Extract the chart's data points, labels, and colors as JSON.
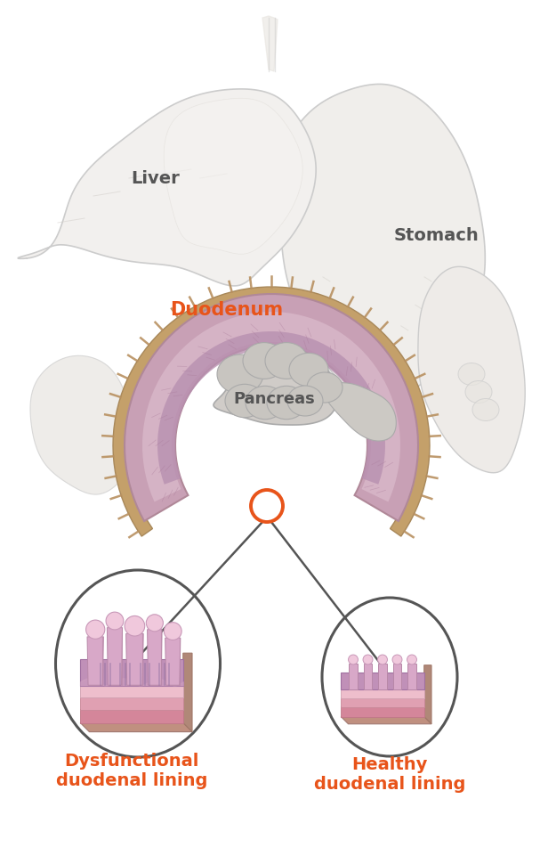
{
  "bg_color": "#ffffff",
  "label_liver": "Liver",
  "label_stomach": "Stomach",
  "label_duodenum": "Duodenum",
  "label_pancreas": "Pancreas",
  "label_dysfunctional": "Dysfunctional\nduodenal lining",
  "label_healthy": "Healthy\nduodenal lining",
  "orange_color": "#E8541A",
  "dark_gray": "#555555",
  "label_fontsize": 13,
  "duodenum_fontsize": 14,
  "figsize": [
    6.16,
    9.61
  ],
  "dpi": 100,
  "liver_color": "#f2f0ee",
  "liver_edge": "#cccccc",
  "stomach_color": "#f0eeeb",
  "stomach_edge": "#cccccc",
  "duo_outer_color": "#c8a0b8",
  "duo_inner_color": "#ddbfcc",
  "duo_rim_color": "#c8a878",
  "panc_color": "#d0ccc8",
  "panc_edge": "#bbbbbb",
  "ellipse_color": "#555555",
  "line_color": "#555555"
}
